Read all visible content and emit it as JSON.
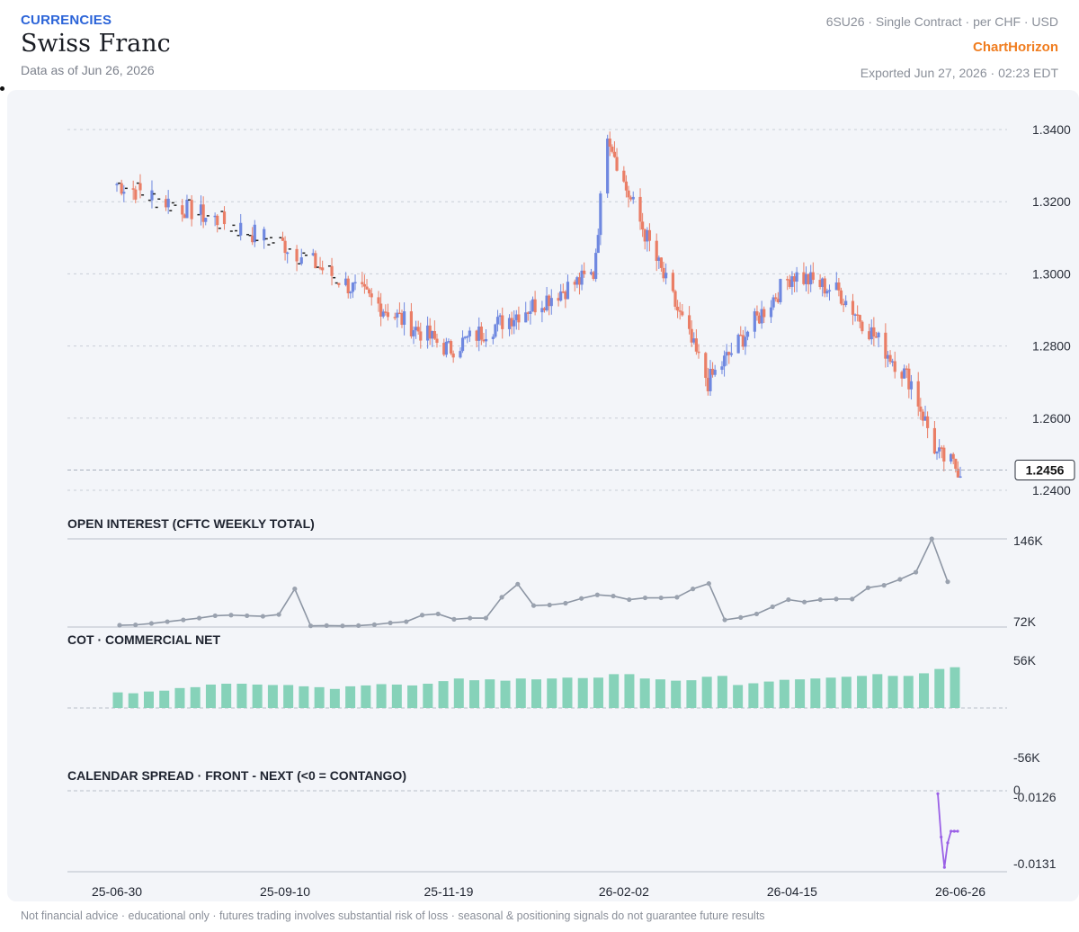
{
  "header": {
    "category": "CURRENCIES",
    "title": "Swiss Franc",
    "as_of": "Data as of Jun 26, 2026",
    "contract": "6SU26 · Single Contract · per CHF · USD",
    "brand": "ChartHorizon",
    "exported": "Exported Jun 27, 2026 · 02:23 EDT"
  },
  "footer": {
    "disclaimer": "Not financial advice · educational only · futures trading involves substantial risk of loss · seasonal & positioning signals do not guarantee future results"
  },
  "colors": {
    "up": "#6f88e0",
    "down": "#ea7e66",
    "doji": "#222222",
    "oi_line": "#8d96a4",
    "cot_bar": "#86d2b9",
    "spread_line": "#9a60e6",
    "grid": "#c9ced7",
    "panel_bg": "#f3f5f9"
  },
  "chart_data": [
    {
      "type": "candlestick",
      "title": "",
      "x_ticks": [
        "25-06-30",
        "25-09-10",
        "25-11-19",
        "26-02-02",
        "26-04-15",
        "26-06-26"
      ],
      "y_ticks": [
        "1.3400",
        "1.3200",
        "1.3000",
        "1.2800",
        "1.2600",
        "1.2400"
      ],
      "ylim": [
        1.239,
        1.344
      ],
      "grid": true,
      "last_price_label": "1.2456",
      "last_price": 1.2456,
      "key_closes": [
        {
          "x": "25-06-30",
          "close": 1.325
        },
        {
          "x": "25-09-10",
          "close": 1.308
        },
        {
          "x": "25-11-19",
          "close": 1.279
        },
        {
          "x": "26-01-20",
          "close": 1.3
        },
        {
          "x": "26-01-26",
          "close": 1.34
        },
        {
          "x": "26-02-02",
          "close": 1.325
        },
        {
          "x": "26-03-10",
          "close": 1.27
        },
        {
          "x": "26-04-15",
          "close": 1.3
        },
        {
          "x": "26-05-05",
          "close": 1.295
        },
        {
          "x": "26-06-05",
          "close": 1.27
        },
        {
          "x": "26-06-16",
          "close": 1.25
        },
        {
          "x": "26-06-26",
          "close": 1.2456
        }
      ]
    },
    {
      "type": "line",
      "title": "OPEN INTEREST (CFTC WEEKLY TOTAL)",
      "y_ticks": [
        "146K",
        "72K"
      ],
      "ylim": [
        72000,
        146000
      ],
      "values": [
        73500,
        73800,
        75000,
        76500,
        78000,
        79500,
        81500,
        82000,
        81500,
        81000,
        82500,
        104000,
        73000,
        73200,
        73000,
        73200,
        74000,
        75500,
        76500,
        82000,
        83000,
        78500,
        79500,
        79500,
        97000,
        108000,
        90000,
        90500,
        92000,
        96000,
        99000,
        98000,
        95000,
        96500,
        96500,
        97000,
        104000,
        108500,
        78000,
        80000,
        83000,
        89000,
        95000,
        93000,
        95000,
        95500,
        95500,
        105000,
        107000,
        112000,
        118000,
        146000,
        110000
      ]
    },
    {
      "type": "bar",
      "title": "COT · COMMERCIAL NET",
      "y_ticks": [
        "56K",
        "-56K"
      ],
      "ylim": [
        -56000,
        56000
      ],
      "values": [
        18000,
        17000,
        19000,
        20000,
        23000,
        24000,
        27000,
        28000,
        28000,
        27000,
        26500,
        26500,
        25000,
        24000,
        22000,
        25000,
        26000,
        27500,
        27000,
        26000,
        28000,
        31000,
        34000,
        32000,
        33000,
        31500,
        34000,
        33000,
        34000,
        35000,
        34500,
        35000,
        39000,
        39000,
        34000,
        33000,
        31500,
        32000,
        36000,
        37000,
        26500,
        28500,
        30500,
        32500,
        33000,
        34000,
        35000,
        36000,
        37000,
        39000,
        37000,
        37000,
        40000,
        45000,
        47000
      ]
    },
    {
      "type": "line",
      "title": "CALENDAR SPREAD · FRONT - NEXT (<0 = CONTANGO)",
      "y_ticks": [
        "0",
        "-0.0126",
        "-0.0131"
      ],
      "ylim": [
        -0.01315,
        -0.01259
      ],
      "values": [
        -0.01261,
        -0.01291,
        -0.01312,
        -0.01295,
        -0.01287,
        -0.01287,
        -0.01287
      ]
    }
  ]
}
